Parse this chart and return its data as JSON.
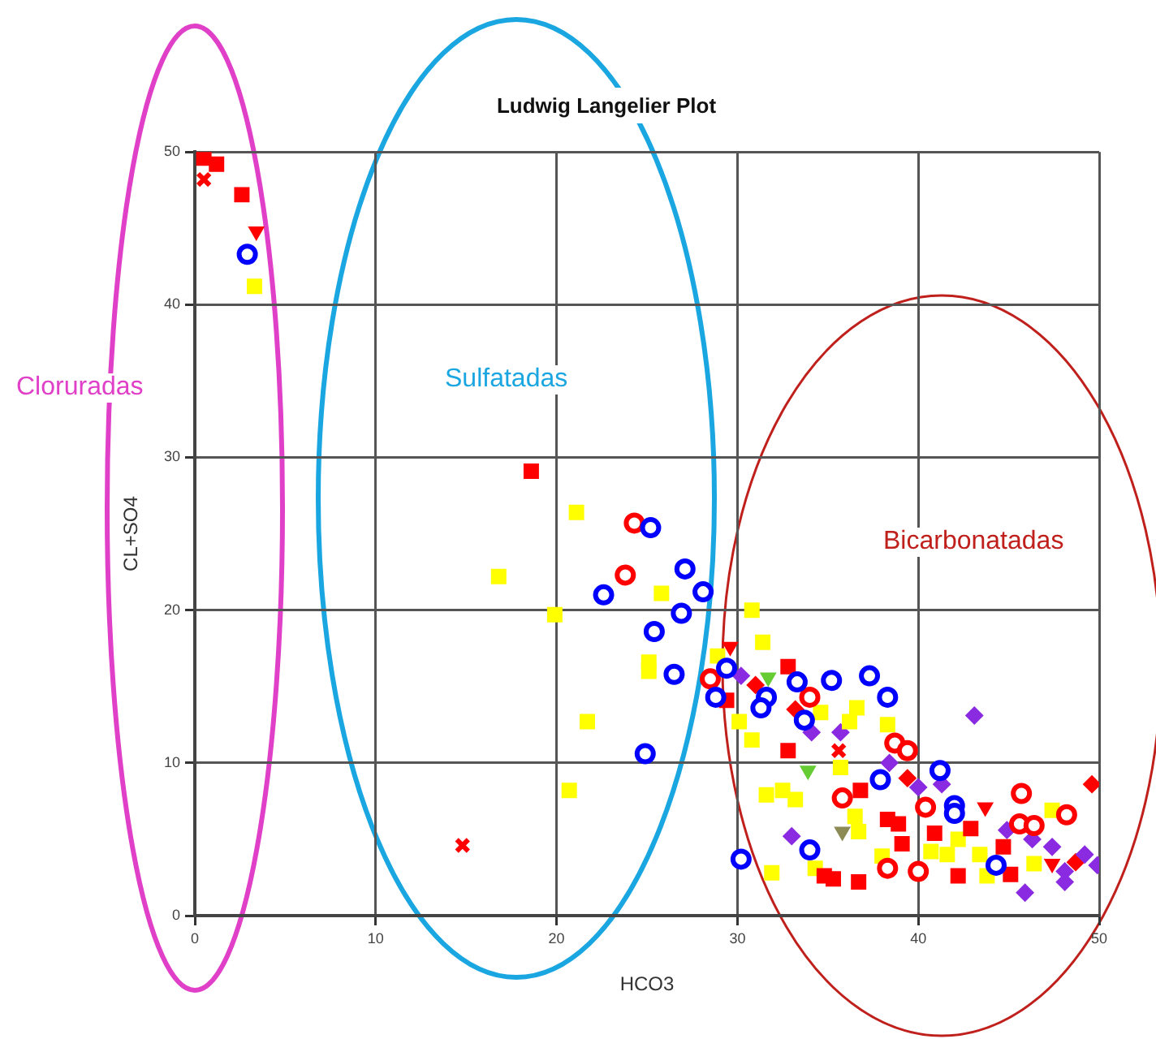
{
  "chart_data": {
    "type": "scatter",
    "title": "Ludwig Langelier Plot",
    "xlabel": "HCO3",
    "ylabel": "CL+SO4",
    "xlim": [
      0,
      50
    ],
    "xticks": [
      0,
      10,
      20,
      30,
      40,
      50
    ],
    "ylim": [
      0,
      50
    ],
    "yticks": [
      0,
      10,
      20,
      30,
      40,
      50
    ],
    "grid": true,
    "legend": false,
    "annotations": [
      "Cloruradas",
      "Sulfatadas",
      "Bicarbonatadas"
    ],
    "series": [
      {
        "color": "#ff0000",
        "marker": "square",
        "x": [
          0.5,
          1.2,
          2.6,
          18.6,
          32.8,
          29.4,
          32.8,
          36.8,
          38.3,
          38.9,
          39.1,
          34.8,
          35.3,
          36.7,
          40.9,
          42.9,
          44.7,
          42.2,
          45.1
        ],
        "values": [
          49.6,
          49.2,
          47.2,
          29.1,
          16.3,
          14.1,
          10.8,
          8.2,
          6.3,
          6.0,
          4.7,
          2.6,
          2.4,
          2.2,
          5.4,
          5.7,
          4.5,
          2.6,
          2.7
        ]
      },
      {
        "color": "#ffff00",
        "marker": "square",
        "x": [
          3.3,
          21.1,
          16.8,
          25.8,
          19.9,
          25.1,
          25.1,
          21.7,
          20.7,
          30.8,
          31.4,
          28.9,
          34.6,
          36.6,
          36.2,
          38.3,
          30.1,
          30.8,
          35.7,
          31.6,
          32.5,
          33.2,
          36.5,
          36.7,
          31.9,
          34.3,
          38.0,
          47.4,
          42.2,
          41.6,
          43.4,
          46.4,
          43.8,
          40.7
        ],
        "values": [
          41.2,
          26.4,
          22.2,
          21.1,
          19.7,
          16.6,
          16.0,
          12.7,
          8.2,
          20.0,
          17.9,
          17.0,
          13.3,
          13.6,
          12.7,
          12.5,
          12.7,
          11.5,
          9.7,
          7.9,
          8.2,
          7.6,
          6.5,
          5.5,
          2.8,
          3.1,
          3.9,
          6.9,
          5.0,
          4.0,
          4.0,
          3.4,
          2.6,
          4.2
        ]
      },
      {
        "color": "#0000ff",
        "marker": "circle",
        "x": [
          2.9,
          25.2,
          22.6,
          27.1,
          28.1,
          26.9,
          25.4,
          26.5,
          24.9,
          29.4,
          33.3,
          35.2,
          37.3,
          28.8,
          31.6,
          31.3,
          38.3,
          33.7,
          37.9,
          34.0,
          30.2,
          41.2,
          42.0,
          42.0,
          44.3
        ],
        "values": [
          43.3,
          25.4,
          21.0,
          22.7,
          21.2,
          19.8,
          18.6,
          15.8,
          10.6,
          16.2,
          15.3,
          15.4,
          15.7,
          14.3,
          14.3,
          13.6,
          14.3,
          12.8,
          8.9,
          4.3,
          3.7,
          9.5,
          7.2,
          6.7,
          3.3
        ]
      },
      {
        "color": "#ff0000",
        "marker": "circle",
        "x": [
          24.3,
          23.8,
          28.5,
          34.0,
          38.7,
          39.4,
          35.8,
          38.3,
          40.0,
          45.7,
          40.4,
          48.2,
          45.6,
          46.4
        ],
        "values": [
          25.7,
          22.3,
          15.5,
          14.3,
          11.3,
          10.8,
          7.7,
          3.1,
          2.9,
          8.0,
          7.1,
          6.6,
          6.0,
          5.9
        ]
      },
      {
        "color": "#8a2be2",
        "marker": "diamond",
        "x": [
          30.2,
          35.7,
          34.1,
          38.4,
          40.0,
          33.0,
          43.1,
          41.3,
          44.9,
          46.3,
          47.4,
          49.2,
          49.9,
          48.1,
          48.1,
          45.9
        ],
        "values": [
          15.7,
          12.0,
          12.0,
          10.0,
          8.4,
          5.2,
          13.1,
          8.6,
          5.6,
          5.0,
          4.5,
          4.0,
          3.3,
          2.9,
          2.2,
          1.5
        ]
      },
      {
        "color": "#ff0000",
        "marker": "diamond",
        "x": [
          31.0,
          33.2,
          39.4,
          49.6,
          48.7
        ],
        "values": [
          15.1,
          13.5,
          9.0,
          8.6,
          3.5
        ]
      },
      {
        "color": "#ff0000",
        "marker": "triangle",
        "x": [
          3.4,
          29.6,
          43.7,
          47.4
        ],
        "values": [
          44.8,
          17.6,
          7.1,
          3.4
        ]
      },
      {
        "color": "#66cc33",
        "marker": "triangle",
        "x": [
          31.7,
          33.9
        ],
        "values": [
          15.6,
          9.5
        ]
      },
      {
        "color": "#ff0000",
        "marker": "cross",
        "x": [
          0.5,
          14.8,
          35.6
        ],
        "values": [
          48.2,
          4.6,
          10.8
        ]
      },
      {
        "color": "#8c8a55",
        "marker": "triangle",
        "x": [
          35.8
        ],
        "values": [
          5.5
        ]
      }
    ]
  }
}
